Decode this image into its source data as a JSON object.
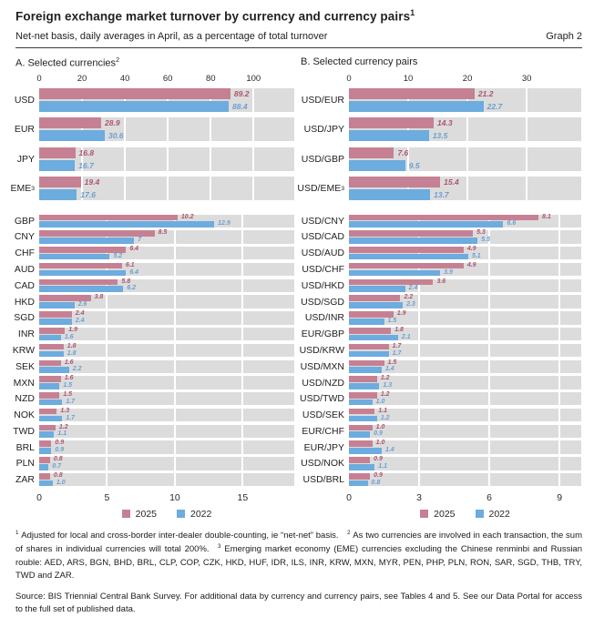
{
  "header": {
    "title": "Foreign exchange market turnover by currency and currency pairs",
    "title_sup": "1",
    "subtitle": "Net-net basis, daily averages in April, as a percentage of total turnover",
    "graph_label": "Graph 2"
  },
  "colors": {
    "bar_2025": "#c58193",
    "bar_2022": "#6cacde",
    "value_label_2025": "#ae546c",
    "value_label_2022": "#6a9fd0",
    "band_background": "#dcdcdc",
    "gridline": "#ffffff"
  },
  "legend": {
    "items": [
      {
        "label": "2025",
        "color": "#c58193"
      },
      {
        "label": "2022",
        "color": "#6cacde"
      }
    ]
  },
  "chart_data": [
    {
      "id": "selected-currencies-major",
      "type": "bar",
      "orientation": "horizontal",
      "title": "A. Selected currencies",
      "title_sup": "2",
      "axis_side": "top",
      "ticks": [
        0,
        20,
        40,
        60,
        80,
        100
      ],
      "xmax": 119,
      "series": [
        "2025",
        "2022"
      ],
      "rows": [
        {
          "label": "USD",
          "v2025": 89.2,
          "v2022": 88.4,
          "d2025": "89.2",
          "d2022": "88.4"
        },
        {
          "label": "EUR",
          "v2025": 28.9,
          "v2022": 30.6,
          "d2025": "28.9",
          "d2022": "30.6"
        },
        {
          "label": "JPY",
          "v2025": 16.8,
          "v2022": 16.7,
          "d2025": "16.8",
          "d2022": "16.7"
        },
        {
          "label": "EME",
          "label_sup": "3",
          "v2025": 19.4,
          "v2022": 17.6,
          "d2025": "19.4",
          "d2022": "17.6"
        }
      ]
    },
    {
      "id": "selected-pairs-major",
      "type": "bar",
      "orientation": "horizontal",
      "title": "B. Selected currency pairs",
      "title_sup": "",
      "axis_side": "top",
      "ticks": [
        0,
        10,
        20,
        30
      ],
      "xmax": 39.2,
      "series": [
        "2025",
        "2022"
      ],
      "rows": [
        {
          "label": "USD/EUR",
          "v2025": 21.2,
          "v2022": 22.7,
          "d2025": "21.2",
          "d2022": "22.7"
        },
        {
          "label": "USD/JPY",
          "v2025": 14.3,
          "v2022": 13.5,
          "d2025": "14.3",
          "d2022": "13.5"
        },
        {
          "label": "USD/GBP",
          "v2025": 7.6,
          "v2022": 9.5,
          "d2025": "7.6",
          "d2022": "9.5"
        },
        {
          "label": "USD/EME",
          "label_sup": "3",
          "v2025": 15.4,
          "v2022": 13.7,
          "d2025": "15.4",
          "d2022": "13.7"
        }
      ]
    },
    {
      "id": "selected-currencies-other",
      "type": "bar",
      "orientation": "horizontal",
      "title": "",
      "title_sup": "",
      "axis_side": "bottom",
      "ticks": [
        0,
        5,
        10,
        15
      ],
      "xmax": 18.8,
      "series": [
        "2025",
        "2022"
      ],
      "rows": [
        {
          "label": "GBP",
          "v2025": 10.2,
          "v2022": 12.9,
          "d2025": "10.2",
          "d2022": "12.9"
        },
        {
          "label": "CNY",
          "v2025": 8.5,
          "v2022": 7.0,
          "d2025": "8.5",
          "d2022": "7"
        },
        {
          "label": "CHF",
          "v2025": 6.4,
          "v2022": 5.2,
          "d2025": "6.4",
          "d2022": "5.2"
        },
        {
          "label": "AUD",
          "v2025": 6.1,
          "v2022": 6.4,
          "d2025": "6.1",
          "d2022": "6.4"
        },
        {
          "label": "CAD",
          "v2025": 5.8,
          "v2022": 6.2,
          "d2025": "5.8",
          "d2022": "6.2"
        },
        {
          "label": "HKD",
          "v2025": 3.8,
          "v2022": 2.6,
          "d2025": "3.8",
          "d2022": "2.6"
        },
        {
          "label": "SGD",
          "v2025": 2.4,
          "v2022": 2.4,
          "d2025": "2.4",
          "d2022": "2.4"
        },
        {
          "label": "INR",
          "v2025": 1.9,
          "v2022": 1.6,
          "d2025": "1.9",
          "d2022": "1.6"
        },
        {
          "label": "KRW",
          "v2025": 1.8,
          "v2022": 1.8,
          "d2025": "1.8",
          "d2022": "1.8"
        },
        {
          "label": "SEK",
          "v2025": 1.6,
          "v2022": 2.2,
          "d2025": "1.6",
          "d2022": "2.2"
        },
        {
          "label": "MXN",
          "v2025": 1.6,
          "v2022": 1.5,
          "d2025": "1.6",
          "d2022": "1.5"
        },
        {
          "label": "NZD",
          "v2025": 1.5,
          "v2022": 1.7,
          "d2025": "1.5",
          "d2022": "1.7"
        },
        {
          "label": "NOK",
          "v2025": 1.3,
          "v2022": 1.7,
          "d2025": "1.3",
          "d2022": "1.7"
        },
        {
          "label": "TWD",
          "v2025": 1.2,
          "v2022": 1.1,
          "d2025": "1.2",
          "d2022": "1.1"
        },
        {
          "label": "BRL",
          "v2025": 0.9,
          "v2022": 0.9,
          "d2025": "0.9",
          "d2022": "0.9"
        },
        {
          "label": "PLN",
          "v2025": 0.8,
          "v2022": 0.7,
          "d2025": "0.8",
          "d2022": "0.7"
        },
        {
          "label": "ZAR",
          "v2025": 0.8,
          "v2022": 1.0,
          "d2025": "0.8",
          "d2022": "1.0"
        }
      ]
    },
    {
      "id": "selected-pairs-other",
      "type": "bar",
      "orientation": "horizontal",
      "title": "",
      "title_sup": "",
      "axis_side": "bottom",
      "ticks": [
        0,
        3,
        6,
        9
      ],
      "xmax": 9.93,
      "series": [
        "2025",
        "2022"
      ],
      "rows": [
        {
          "label": "USD/CNY",
          "v2025": 8.1,
          "v2022": 6.6,
          "d2025": "8.1",
          "d2022": "6.6"
        },
        {
          "label": "USD/CAD",
          "v2025": 5.3,
          "v2022": 5.5,
          "d2025": "5.3",
          "d2022": "5.5"
        },
        {
          "label": "USD/AUD",
          "v2025": 4.9,
          "v2022": 5.1,
          "d2025": "4.9",
          "d2022": "5.1"
        },
        {
          "label": "USD/CHF",
          "v2025": 4.9,
          "v2022": 3.9,
          "d2025": "4.9",
          "d2022": "3.9"
        },
        {
          "label": "USD/HKD",
          "v2025": 3.6,
          "v2022": 2.4,
          "d2025": "3.6",
          "d2022": "2.4"
        },
        {
          "label": "USD/SGD",
          "v2025": 2.2,
          "v2022": 2.3,
          "d2025": "2.2",
          "d2022": "2.3"
        },
        {
          "label": "USD/INR",
          "v2025": 1.9,
          "v2022": 1.5,
          "d2025": "1.9",
          "d2022": "1.5"
        },
        {
          "label": "EUR/GBP",
          "v2025": 1.8,
          "v2022": 2.1,
          "d2025": "1.8",
          "d2022": "2.1"
        },
        {
          "label": "USD/KRW",
          "v2025": 1.7,
          "v2022": 1.7,
          "d2025": "1.7",
          "d2022": "1.7"
        },
        {
          "label": "USD/MXN",
          "v2025": 1.5,
          "v2022": 1.4,
          "d2025": "1.5",
          "d2022": "1.4"
        },
        {
          "label": "USD/NZD",
          "v2025": 1.2,
          "v2022": 1.3,
          "d2025": "1.2",
          "d2022": "1.3"
        },
        {
          "label": "USD/TWD",
          "v2025": 1.2,
          "v2022": 1.0,
          "d2025": "1.2",
          "d2022": "1.0"
        },
        {
          "label": "USD/SEK",
          "v2025": 1.1,
          "v2022": 1.2,
          "d2025": "1.1",
          "d2022": "1.2"
        },
        {
          "label": "EUR/CHF",
          "v2025": 1.0,
          "v2022": 0.9,
          "d2025": "1.0",
          "d2022": "0.9"
        },
        {
          "label": "EUR/JPY",
          "v2025": 1.0,
          "v2022": 1.4,
          "d2025": "1.0",
          "d2022": "1.4"
        },
        {
          "label": "USD/NOK",
          "v2025": 0.9,
          "v2022": 1.1,
          "d2025": "0.9",
          "d2022": "1.1"
        },
        {
          "label": "USD/BRL",
          "v2025": 0.9,
          "v2022": 0.8,
          "d2025": "0.9",
          "d2022": "0.8"
        }
      ]
    }
  ],
  "footnotes": [
    {
      "sup": "1",
      "text": "Adjusted for local and cross-border inter-dealer double-counting, ie “net-net” basis."
    },
    {
      "sup": "2",
      "text": "As two currencies are involved in each transaction, the sum of shares in individual currencies will total 200%."
    },
    {
      "sup": "3",
      "text": "Emerging market economy (EME) currencies excluding the Chinese renminbi and Russian rouble: AED, ARS, BGN, BHD, BRL, CLP, COP, CZK, HKD, HUF, IDR, ILS, INR, KRW, MXN, MYR, PEN, PHP, PLN, RON, SAR, SGD, THB, TRY, TWD and ZAR."
    }
  ],
  "source": "Source: BIS Triennial Central Bank Survey. For additional data by currency and currency pairs, see Tables 4 and 5. See our Data Portal for access to the full set of published data."
}
